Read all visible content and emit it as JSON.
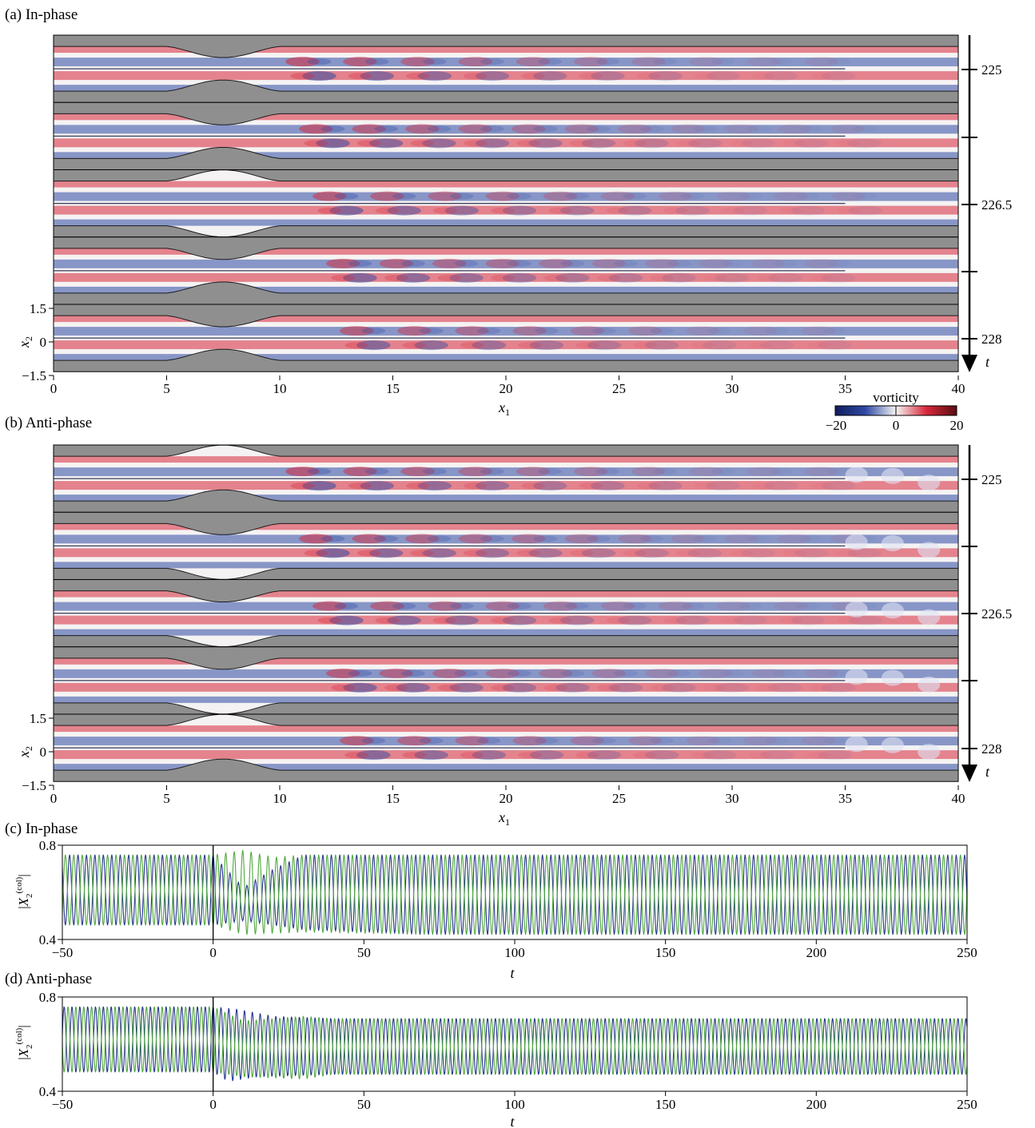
{
  "panels": [
    {
      "label": "(a) In-phase",
      "phase": "in",
      "times": [
        "225",
        "226.5",
        "228"
      ],
      "time_axis_label": "t",
      "x_ticks": [
        "0",
        "5",
        "10",
        "15",
        "20",
        "25",
        "30",
        "35",
        "40"
      ],
      "y_ticks": [
        "1.5",
        "0",
        "−1.5"
      ],
      "x_label": "x",
      "x_label_sub": "1",
      "y_label": "x",
      "y_label_sub": "2"
    },
    {
      "label": "(b) Anti-phase",
      "phase": "anti",
      "times": [
        "225",
        "226.5",
        "228"
      ],
      "time_axis_label": "t",
      "x_ticks": [
        "0",
        "5",
        "10",
        "15",
        "20",
        "25",
        "30",
        "35",
        "40"
      ],
      "y_ticks": [
        "1.5",
        "0",
        "−1.5"
      ],
      "x_label": "x",
      "x_label_sub": "1",
      "y_label": "x",
      "y_label_sub": "2"
    }
  ],
  "colorbar": {
    "title": "vorticity",
    "ticks": [
      "−20",
      "0",
      "20"
    ],
    "colors": [
      "#5a0d12",
      "#d7283a",
      "#f6f4f4",
      "#2f4aa4",
      "#111d5e"
    ]
  },
  "colors": {
    "wall_gray": "#8f8f8f",
    "series_blue": "#26358c",
    "series_green": "#4fa83c"
  },
  "chart_data": [
    {
      "label": "(c) In-phase",
      "type": "line",
      "xlabel": "t",
      "ylabel": "|X₂^(col)|",
      "xlim": [
        -50,
        250
      ],
      "ylim": [
        0.4,
        0.8
      ],
      "x_ticks": [
        "−50",
        "0",
        "50",
        "100",
        "150",
        "200",
        "250"
      ],
      "y_ticks": [
        "0.8",
        "0.4"
      ],
      "period": 2.8,
      "marker_line_x": 0,
      "series": [
        {
          "color": "#26358c",
          "points": [
            [
              -50,
              0.76
            ],
            [
              0,
              0.76
            ],
            [
              10,
              0.62
            ],
            [
              20,
              0.7
            ],
            [
              30,
              0.76
            ],
            [
              40,
              0.76
            ],
            [
              70,
              0.76
            ],
            [
              250,
              0.76
            ]
          ],
          "lower": [
            [
              -50,
              0.46
            ],
            [
              0,
              0.46
            ],
            [
              10,
              0.48
            ],
            [
              20,
              0.46
            ],
            [
              30,
              0.44
            ],
            [
              70,
              0.42
            ],
            [
              250,
              0.42
            ]
          ]
        },
        {
          "color": "#4fa83c",
          "points": [
            [
              -50,
              0.76
            ],
            [
              0,
              0.76
            ],
            [
              10,
              0.78
            ],
            [
              20,
              0.75
            ],
            [
              30,
              0.76
            ],
            [
              70,
              0.76
            ],
            [
              250,
              0.76
            ]
          ],
          "lower": [
            [
              -50,
              0.46
            ],
            [
              0,
              0.46
            ],
            [
              5,
              0.44
            ],
            [
              10,
              0.42
            ],
            [
              30,
              0.43
            ],
            [
              70,
              0.42
            ],
            [
              250,
              0.42
            ]
          ]
        }
      ]
    },
    {
      "label": "(d) Anti-phase",
      "type": "line",
      "xlabel": "t",
      "ylabel": "|X₂^(col)|",
      "xlim": [
        -50,
        250
      ],
      "ylim": [
        0.4,
        0.8
      ],
      "x_ticks": [
        "−50",
        "0",
        "50",
        "100",
        "150",
        "200",
        "250"
      ],
      "y_ticks": [
        "0.8",
        "0.4"
      ],
      "period": 2.6,
      "marker_line_x": 0,
      "series": [
        {
          "color": "#26358c",
          "points": [
            [
              -50,
              0.76
            ],
            [
              0,
              0.76
            ],
            [
              8,
              0.75
            ],
            [
              20,
              0.72
            ],
            [
              40,
              0.71
            ],
            [
              250,
              0.71
            ]
          ],
          "lower": [
            [
              -50,
              0.48
            ],
            [
              0,
              0.48
            ],
            [
              5,
              0.44
            ],
            [
              15,
              0.46
            ],
            [
              40,
              0.47
            ],
            [
              250,
              0.47
            ]
          ]
        },
        {
          "color": "#4fa83c",
          "points": [
            [
              -50,
              0.76
            ],
            [
              0,
              0.76
            ],
            [
              10,
              0.7
            ],
            [
              30,
              0.72
            ],
            [
              40,
              0.71
            ],
            [
              250,
              0.71
            ]
          ],
          "lower": [
            [
              -50,
              0.48
            ],
            [
              0,
              0.48
            ],
            [
              10,
              0.46
            ],
            [
              30,
              0.45
            ],
            [
              40,
              0.47
            ],
            [
              250,
              0.47
            ]
          ]
        }
      ]
    }
  ]
}
